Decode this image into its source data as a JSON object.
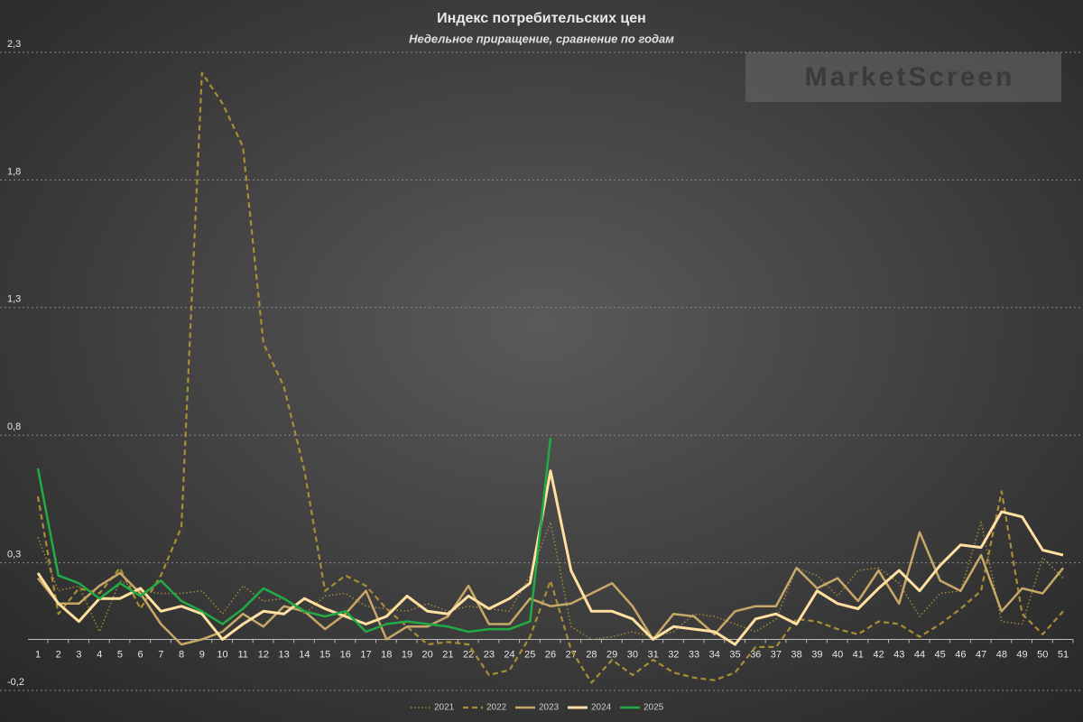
{
  "chart_data": {
    "type": "line",
    "title": "Индекс потребительских цен",
    "subtitle": "Недельное приращение, сравнение по годам",
    "watermark": "MarketScreen",
    "categories": [
      "1",
      "2",
      "3",
      "4",
      "5",
      "6",
      "7",
      "8",
      "9",
      "10",
      "11",
      "12",
      "13",
      "14",
      "15",
      "16",
      "17",
      "18",
      "19",
      "20",
      "21",
      "22",
      "23",
      "24",
      "25",
      "26",
      "27",
      "28",
      "29",
      "30",
      "31",
      "32",
      "33",
      "34",
      "35",
      "36",
      "37",
      "38",
      "39",
      "40",
      "41",
      "42",
      "43",
      "44",
      "45",
      "46",
      "47",
      "48",
      "49",
      "50",
      "51"
    ],
    "ylim": [
      -0.2,
      2.3
    ],
    "yticks": [
      {
        "value": -0.2,
        "label": "-0,2"
      },
      {
        "value": 0.3,
        "label": "0,3"
      },
      {
        "value": 0.8,
        "label": "0,8"
      },
      {
        "value": 1.3,
        "label": "1,3"
      },
      {
        "value": 1.8,
        "label": "1,8"
      },
      {
        "value": 2.3,
        "label": "2,3"
      }
    ],
    "grid": true,
    "legend": "bottom",
    "series": [
      {
        "name": "2021",
        "color": "#a08a3a",
        "dash": "dotted",
        "values": [
          0.4,
          0.19,
          0.21,
          0.03,
          0.23,
          0.19,
          0.18,
          0.18,
          0.19,
          0.1,
          0.21,
          0.15,
          0.16,
          0.1,
          0.17,
          0.18,
          0.13,
          0.12,
          0.11,
          0.14,
          0.11,
          0.13,
          0.12,
          0.11,
          0.25,
          0.46,
          0.05,
          0.0,
          0.01,
          0.03,
          0.01,
          0.03,
          0.1,
          0.09,
          0.06,
          0.03,
          0.08,
          0.28,
          0.25,
          0.17,
          0.27,
          0.28,
          0.22,
          0.09,
          0.18,
          0.19,
          0.46,
          0.07,
          0.06,
          0.32,
          0.24
        ]
      },
      {
        "name": "2022",
        "color": "#a88e34",
        "dash": "dashed",
        "values": [
          0.56,
          0.1,
          0.2,
          0.18,
          0.28,
          0.12,
          0.25,
          0.44,
          2.22,
          2.1,
          1.93,
          1.16,
          0.99,
          0.66,
          0.19,
          0.25,
          0.21,
          0.12,
          0.05,
          -0.02,
          -0.01,
          -0.02,
          -0.14,
          -0.12,
          0.01,
          0.23,
          -0.04,
          -0.17,
          -0.08,
          -0.14,
          -0.08,
          -0.13,
          -0.15,
          -0.16,
          -0.13,
          -0.03,
          -0.03,
          0.08,
          0.07,
          0.04,
          0.02,
          0.07,
          0.06,
          0.01,
          0.06,
          0.12,
          0.19,
          0.58,
          0.1,
          0.02,
          0.11
        ]
      },
      {
        "name": "2023",
        "color": "#c8a868",
        "dash": "solid",
        "values": [
          0.24,
          0.14,
          0.14,
          0.21,
          0.26,
          0.18,
          0.06,
          -0.02,
          0.0,
          0.03,
          0.1,
          0.05,
          0.13,
          0.11,
          0.04,
          0.1,
          0.19,
          0.0,
          0.05,
          0.05,
          0.09,
          0.21,
          0.06,
          0.06,
          0.16,
          0.13,
          0.14,
          0.18,
          0.22,
          0.13,
          0.0,
          0.1,
          0.09,
          0.02,
          0.11,
          0.13,
          0.13,
          0.28,
          0.2,
          0.24,
          0.15,
          0.27,
          0.14,
          0.42,
          0.23,
          0.19,
          0.33,
          0.11,
          0.2,
          0.18,
          0.28
        ]
      },
      {
        "name": "2024",
        "color": "#ffe0a0",
        "dash": "solid",
        "values": [
          0.26,
          0.14,
          0.07,
          0.16,
          0.16,
          0.2,
          0.11,
          0.13,
          0.1,
          0.0,
          0.06,
          0.11,
          0.1,
          0.16,
          0.12,
          0.09,
          0.06,
          0.09,
          0.17,
          0.11,
          0.1,
          0.17,
          0.12,
          0.16,
          0.22,
          0.66,
          0.27,
          0.11,
          0.11,
          0.08,
          0.0,
          0.05,
          0.04,
          0.03,
          -0.02,
          0.08,
          0.1,
          0.06,
          0.19,
          0.14,
          0.12,
          0.2,
          0.27,
          0.19,
          0.29,
          0.37,
          0.36,
          0.5,
          0.48,
          0.35,
          0.33
        ]
      },
      {
        "name": "2025",
        "color": "#22aa44",
        "dash": "solid",
        "values": [
          0.67,
          0.25,
          0.22,
          0.16,
          0.22,
          0.17,
          0.23,
          0.15,
          0.11,
          0.06,
          0.12,
          0.2,
          0.16,
          0.11,
          0.09,
          0.11,
          0.03,
          0.06,
          0.07,
          0.06,
          0.05,
          0.03,
          0.04,
          0.04,
          0.07,
          0.79,
          null,
          null,
          null,
          null,
          null,
          null,
          null,
          null,
          null,
          null,
          null,
          null,
          null,
          null,
          null,
          null,
          null,
          null,
          null,
          null,
          null,
          null,
          null,
          null,
          null
        ]
      }
    ]
  }
}
